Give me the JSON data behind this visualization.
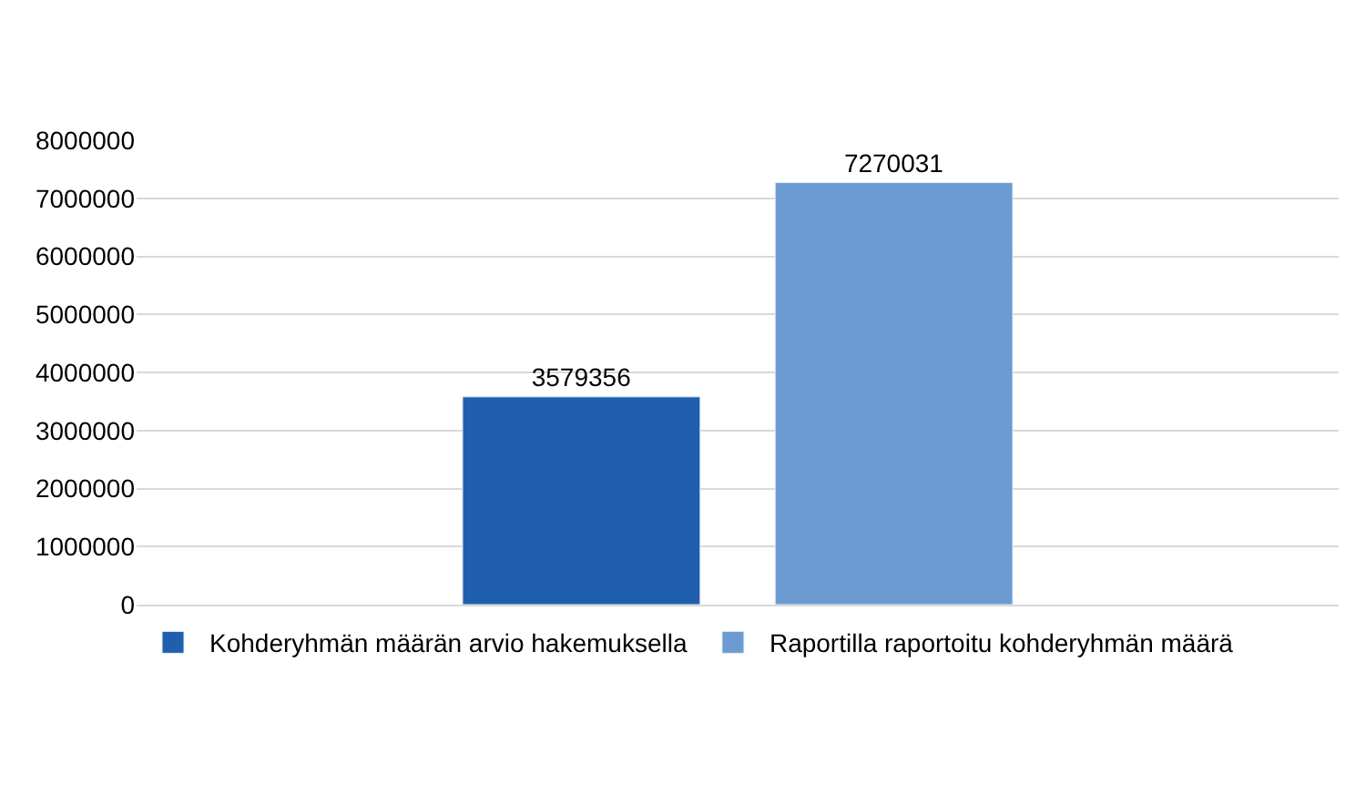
{
  "chart_data": {
    "type": "bar",
    "categories": [
      null
    ],
    "series": [
      {
        "name": "Kohderyhmän määrän arvio hakemuksella",
        "color": "#1f5fad",
        "values": [
          3579356
        ]
      },
      {
        "name": "Raportilla raportoitu kohderyhmän määrä",
        "color": "#6b9bd1",
        "values": [
          7270031
        ]
      }
    ],
    "ylim": [
      0,
      8000000
    ],
    "yticks": [
      0,
      1000000,
      2000000,
      3000000,
      4000000,
      5000000,
      6000000,
      7000000,
      8000000
    ],
    "grid": "y",
    "legend": "bottom",
    "data_labels": true
  }
}
